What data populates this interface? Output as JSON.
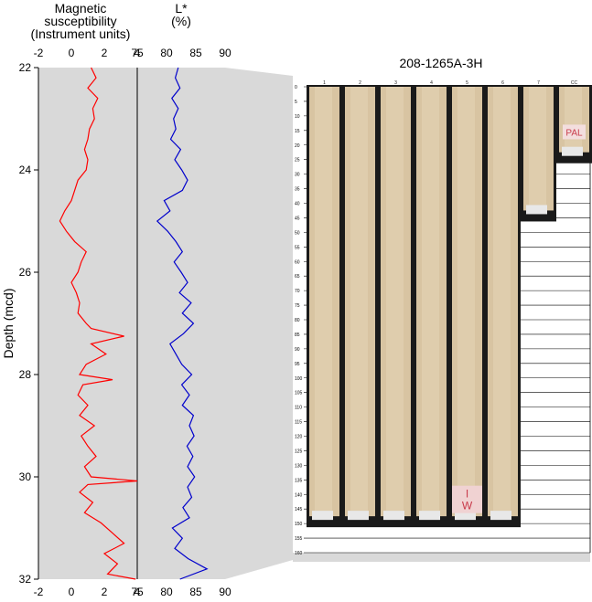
{
  "chart_data": [
    {
      "type": "line",
      "title": "Magnetic susceptibility (Instrument units)",
      "title_lines": [
        "Magnetic",
        "susceptibility",
        "(Instrument units)"
      ],
      "ylabel": "Depth (mcd)",
      "xlim": [
        -2,
        4
      ],
      "xticks": [
        -2,
        0,
        2,
        4
      ],
      "ylim": [
        22,
        32
      ],
      "yticks": [
        22,
        24,
        26,
        28,
        30,
        32
      ],
      "y_inverted": true,
      "color": "#ff0000",
      "series": [
        {
          "depth": [
            22.0,
            22.2,
            22.4,
            22.6,
            22.8,
            23.0,
            23.2,
            23.4,
            23.6,
            23.8,
            24.0,
            24.2,
            24.4,
            24.6,
            24.8,
            25.0,
            25.2,
            25.4,
            25.6,
            25.8,
            26.0,
            26.2,
            26.4,
            26.6,
            26.8,
            27.0,
            27.1,
            27.25,
            27.4,
            27.6,
            27.8,
            28.0,
            28.1,
            28.2,
            28.4,
            28.6,
            28.8,
            29.0,
            29.2,
            29.4,
            29.6,
            29.8,
            30.0,
            30.08,
            30.15,
            30.3,
            30.5,
            30.7,
            30.9,
            31.1,
            31.3,
            31.5,
            31.7,
            31.9,
            32.0
          ],
          "values": [
            1.2,
            1.5,
            1.0,
            1.6,
            1.3,
            1.4,
            1.1,
            1.0,
            0.8,
            1.0,
            0.9,
            0.4,
            0.2,
            0.0,
            -0.4,
            -0.7,
            -0.3,
            0.2,
            0.9,
            0.6,
            0.4,
            0.0,
            0.3,
            0.5,
            0.4,
            0.9,
            1.2,
            3.2,
            1.2,
            2.1,
            0.9,
            0.5,
            2.5,
            0.7,
            0.4,
            1.0,
            0.5,
            1.4,
            0.6,
            1.0,
            1.5,
            0.8,
            1.2,
            4.0,
            1.0,
            0.5,
            1.3,
            0.8,
            1.8,
            2.5,
            3.2,
            2.0,
            2.8,
            2.2,
            3.9
          ]
        }
      ]
    },
    {
      "type": "line",
      "title": "L* (%)",
      "title_lines": [
        "L*",
        "(%)"
      ],
      "xlim": [
        75,
        90
      ],
      "xticks": [
        75,
        80,
        85,
        90
      ],
      "ylim": [
        22,
        32
      ],
      "y_inverted": true,
      "color": "#0000cc",
      "series": [
        {
          "depth": [
            22.0,
            22.2,
            22.4,
            22.6,
            22.8,
            23.0,
            23.2,
            23.4,
            23.6,
            23.8,
            24.0,
            24.2,
            24.4,
            24.6,
            24.8,
            25.0,
            25.2,
            25.4,
            25.6,
            25.8,
            26.0,
            26.2,
            26.4,
            26.6,
            26.8,
            27.0,
            27.2,
            27.4,
            27.6,
            27.8,
            28.0,
            28.2,
            28.4,
            28.6,
            28.8,
            29.0,
            29.2,
            29.4,
            29.6,
            29.8,
            30.0,
            30.2,
            30.4,
            30.6,
            30.8,
            31.0,
            31.2,
            31.4,
            31.6,
            31.8,
            32.0
          ],
          "values": [
            82.0,
            81.5,
            82.3,
            80.9,
            82.0,
            81.2,
            81.6,
            80.7,
            82.4,
            81.4,
            82.6,
            83.6,
            82.7,
            79.6,
            80.6,
            78.4,
            80.2,
            81.6,
            82.7,
            81.3,
            82.5,
            83.6,
            82.2,
            84.2,
            82.7,
            84.6,
            82.9,
            80.6,
            81.6,
            82.6,
            84.3,
            82.6,
            83.9,
            82.7,
            84.6,
            83.9,
            84.7,
            83.5,
            84.5,
            83.6,
            84.8,
            83.6,
            84.3,
            82.8,
            83.9,
            81.0,
            82.7,
            81.4,
            83.7,
            86.9,
            82.3
          ]
        }
      ]
    },
    {
      "type": "image",
      "title": "208-1265A-3H",
      "ruler_ticks": [
        "0",
        "5",
        "10",
        "15",
        "20",
        "25",
        "30",
        "35",
        "40",
        "45",
        "50",
        "55",
        "60",
        "65",
        "70",
        "75",
        "80",
        "85",
        "90",
        "95",
        "100",
        "105",
        "110",
        "115",
        "120",
        "125",
        "130",
        "135",
        "140",
        "145",
        "150",
        "155",
        "160"
      ],
      "sections": [
        "1",
        "2",
        "3",
        "4",
        "5",
        "6",
        "7",
        "CC"
      ],
      "section_lengths_cm": [
        150,
        150,
        150,
        150,
        150,
        150,
        45,
        25
      ],
      "annotations": [
        {
          "section": "5",
          "text": "I W"
        },
        {
          "section": "CC",
          "text": "PAL"
        }
      ]
    }
  ]
}
